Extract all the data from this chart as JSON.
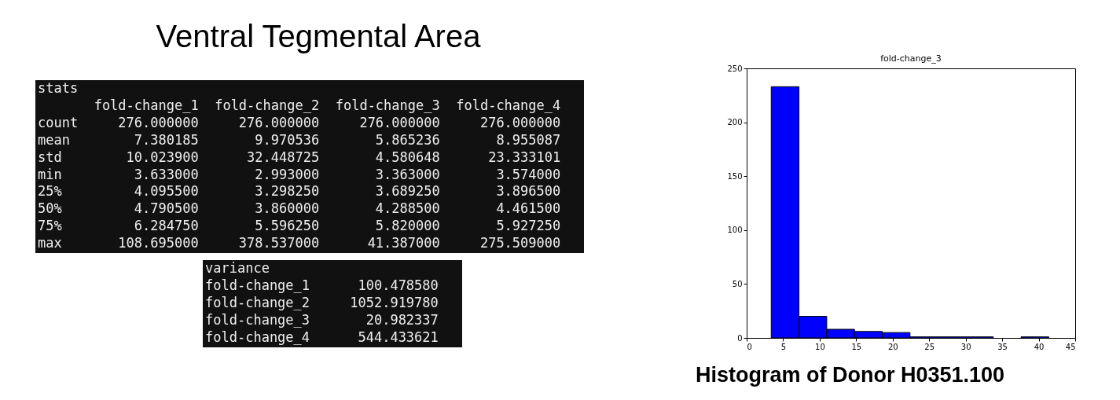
{
  "chart_data": [
    {
      "type": "other",
      "title": "Ventral Tegmental Area",
      "annotations": [
        "stats",
        "       fold-change_1  fold-change_2  fold-change_3  fold-change_4",
        "count     276.000000     276.000000     276.000000     276.000000",
        "mean        7.380185       9.970536       5.865236       8.955087",
        "std        10.023900      32.448725       4.580648      23.333101",
        "min         3.633000       2.993000       3.363000       3.574000",
        "25%         4.095500       3.298250       3.689250       3.896500",
        "50%         4.790500       3.860000       4.288500       4.461500",
        "75%         6.284750       5.596250       5.820000       5.927250",
        "max       108.695000     378.537000      41.387000     275.509000"
      ]
    },
    {
      "type": "other",
      "annotations": [
        "variance",
        "fold-change_1      100.478580",
        "fold-change_2     1052.919780",
        "fold-change_3       20.982337",
        "fold-change_4      544.433621"
      ]
    },
    {
      "type": "histogram",
      "title": "fold-change_3",
      "bins": [
        3.363,
        7.165,
        10.968,
        14.77,
        18.573,
        22.375,
        26.177,
        29.98,
        33.782,
        37.585,
        41.387
      ],
      "values": [
        233,
        20,
        8,
        6,
        5,
        1,
        1,
        1,
        0,
        1
      ],
      "color": "#0000ff",
      "xlim": [
        0,
        45
      ],
      "xticks": [
        0,
        5,
        10,
        15,
        20,
        25,
        30,
        35,
        40,
        45
      ],
      "ylim": [
        0,
        250
      ],
      "yticks": [
        0,
        50,
        100,
        150,
        200,
        250
      ],
      "annotations": [
        "Histogram of Donor H0351.100"
      ]
    }
  ]
}
